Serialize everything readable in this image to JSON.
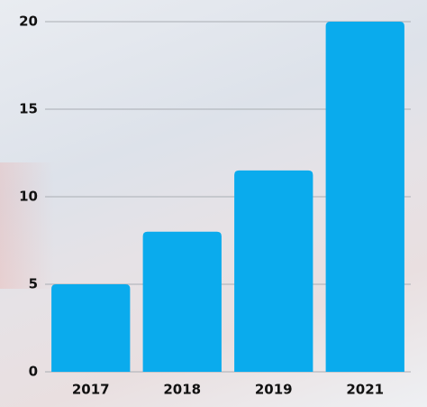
{
  "chart_data": {
    "type": "bar",
    "categories": [
      "2017",
      "2018",
      "2019",
      "2021"
    ],
    "values": [
      5,
      8,
      11.5,
      20
    ],
    "color": "#0aabed",
    "ylim": [
      0,
      20
    ],
    "yticks": [
      0,
      5,
      10,
      15,
      20
    ],
    "grid": true
  }
}
